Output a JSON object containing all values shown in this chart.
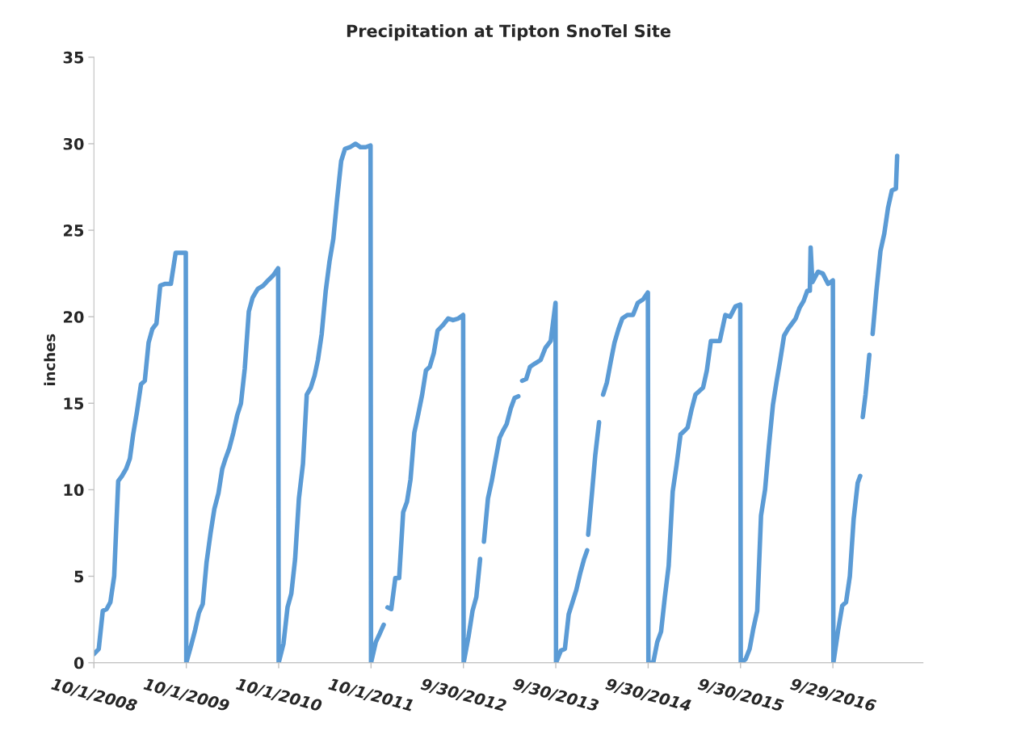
{
  "chart_data": {
    "type": "line",
    "title": "Precipitation at Tipton SnoTel Site",
    "ylabel": "inches",
    "x": [
      "2008-10-01",
      "2008-10-20",
      "2008-11-05",
      "2008-11-20",
      "2008-12-05",
      "2008-12-20",
      "2009-01-05",
      "2009-01-20",
      "2009-02-05",
      "2009-02-20",
      "2009-03-05",
      "2009-03-20",
      "2009-04-05",
      "2009-04-20",
      "2009-05-05",
      "2009-05-20",
      "2009-06-05",
      "2009-06-20",
      "2009-07-10",
      "2009-08-01",
      "2009-08-20",
      "2009-09-10",
      "2009-09-29",
      "2009-10-01",
      "2009-10-20",
      "2009-11-05",
      "2009-11-20",
      "2009-12-05",
      "2009-12-20",
      "2010-01-05",
      "2010-01-20",
      "2010-02-05",
      "2010-02-20",
      "2010-03-05",
      "2010-03-20",
      "2010-04-05",
      "2010-04-20",
      "2010-05-05",
      "2010-05-20",
      "2010-06-05",
      "2010-06-20",
      "2010-07-10",
      "2010-08-01",
      "2010-08-20",
      "2010-09-10",
      "2010-09-29",
      "2010-10-01",
      "2010-10-20",
      "2010-11-05",
      "2010-11-20",
      "2010-12-05",
      "2010-12-20",
      "2011-01-05",
      "2011-01-20",
      "2011-02-05",
      "2011-02-20",
      "2011-03-05",
      "2011-03-20",
      "2011-04-05",
      "2011-04-20",
      "2011-05-05",
      "2011-05-20",
      "2011-06-05",
      "2011-06-20",
      "2011-07-10",
      "2011-08-01",
      "2011-08-20",
      "2011-09-10",
      "2011-09-29",
      "2011-10-01",
      "2011-10-20",
      "2011-11-05",
      "2011-11-20",
      "2011-11-22",
      "2011-12-05",
      "2011-12-20",
      "2012-01-05",
      "2012-01-20",
      "2012-02-05",
      "2012-02-20",
      "2012-03-05",
      "2012-03-20",
      "2012-04-05",
      "2012-04-20",
      "2012-05-05",
      "2012-05-20",
      "2012-06-05",
      "2012-06-20",
      "2012-07-10",
      "2012-08-01",
      "2012-08-20",
      "2012-09-10",
      "2012-09-29",
      "2012-10-01",
      "2012-10-20",
      "2012-11-05",
      "2012-11-20",
      "2012-12-05",
      "2012-12-10",
      "2012-12-20",
      "2013-01-05",
      "2013-01-20",
      "2013-02-05",
      "2013-02-20",
      "2013-03-05",
      "2013-03-20",
      "2013-04-05",
      "2013-04-20",
      "2013-05-05",
      "2013-05-12",
      "2013-05-20",
      "2013-06-05",
      "2013-06-20",
      "2013-07-10",
      "2013-08-01",
      "2013-08-20",
      "2013-09-10",
      "2013-09-29",
      "2013-10-01",
      "2013-10-20",
      "2013-11-05",
      "2013-11-20",
      "2013-12-05",
      "2013-12-20",
      "2014-01-05",
      "2014-01-20",
      "2014-02-01",
      "2014-02-03",
      "2014-02-05",
      "2014-02-20",
      "2014-03-05",
      "2014-03-20",
      "2014-03-28",
      "2014-04-05",
      "2014-04-20",
      "2014-05-05",
      "2014-05-20",
      "2014-06-05",
      "2014-06-20",
      "2014-07-10",
      "2014-08-01",
      "2014-08-20",
      "2014-09-10",
      "2014-09-29",
      "2014-10-01",
      "2014-10-20",
      "2014-11-05",
      "2014-11-20",
      "2014-12-05",
      "2014-12-20",
      "2015-01-05",
      "2015-01-20",
      "2015-02-05",
      "2015-02-20",
      "2015-03-05",
      "2015-03-20",
      "2015-04-05",
      "2015-04-20",
      "2015-05-05",
      "2015-05-20",
      "2015-06-05",
      "2015-06-20",
      "2015-07-10",
      "2015-08-01",
      "2015-08-20",
      "2015-09-10",
      "2015-09-29",
      "2015-10-01",
      "2015-10-20",
      "2015-11-05",
      "2015-11-20",
      "2015-12-05",
      "2015-12-20",
      "2016-01-05",
      "2016-01-20",
      "2016-02-05",
      "2016-02-20",
      "2016-03-05",
      "2016-03-20",
      "2016-04-05",
      "2016-04-20",
      "2016-05-05",
      "2016-05-20",
      "2016-06-05",
      "2016-06-20",
      "2016-06-30",
      "2016-07-03",
      "2016-07-10",
      "2016-08-01",
      "2016-08-20",
      "2016-09-10",
      "2016-09-29",
      "2016-10-01",
      "2016-10-20",
      "2016-11-05",
      "2016-11-20",
      "2016-12-05",
      "2016-12-20",
      "2017-01-05",
      "2017-01-15",
      "2017-01-19",
      "2017-01-25",
      "2017-02-05",
      "2017-02-20",
      "2017-02-27",
      "2017-03-05",
      "2017-03-20",
      "2017-04-05",
      "2017-04-20",
      "2017-05-05",
      "2017-05-20",
      "2017-06-05",
      "2017-06-10"
    ],
    "series": [
      {
        "color": "#5b9bd5",
        "values": [
          0.5,
          0.8,
          3.0,
          3.1,
          3.5,
          5.0,
          10.5,
          10.8,
          11.2,
          11.8,
          13.2,
          14.5,
          16.1,
          16.3,
          18.5,
          19.3,
          19.6,
          21.8,
          21.9,
          21.9,
          23.7,
          23.7,
          23.7,
          0,
          1.0,
          1.9,
          2.9,
          3.4,
          5.8,
          7.5,
          8.9,
          9.8,
          11.2,
          11.8,
          12.4,
          13.3,
          14.3,
          15.0,
          17.0,
          20.3,
          21.1,
          21.6,
          21.8,
          22.1,
          22.4,
          22.8,
          0,
          1.1,
          3.2,
          4.0,
          6.0,
          9.5,
          11.5,
          15.5,
          15.9,
          16.6,
          17.5,
          19.0,
          21.5,
          23.2,
          24.5,
          26.8,
          29.0,
          29.7,
          29.8,
          30.0,
          29.8,
          29.8,
          29.9,
          0,
          1.2,
          1.7,
          2.2,
          null,
          3.2,
          3.1,
          4.9,
          4.9,
          8.7,
          9.3,
          10.6,
          13.3,
          14.4,
          15.5,
          16.9,
          17.1,
          17.9,
          19.2,
          19.5,
          19.9,
          19.8,
          19.9,
          20.1,
          0,
          1.5,
          3.0,
          3.8,
          6.0,
          null,
          7.0,
          9.5,
          10.5,
          11.8,
          13.0,
          13.4,
          13.8,
          14.7,
          15.3,
          15.4,
          null,
          16.3,
          16.4,
          17.1,
          17.3,
          17.5,
          18.2,
          18.6,
          20.8,
          0,
          0.7,
          0.8,
          2.8,
          3.5,
          4.2,
          5.2,
          6.0,
          6.5,
          null,
          7.4,
          9.8,
          12.0,
          13.9,
          null,
          15.5,
          16.2,
          17.4,
          18.5,
          19.3,
          19.9,
          20.1,
          20.1,
          20.8,
          21.0,
          21.4,
          0,
          0,
          1.2,
          1.8,
          3.8,
          5.6,
          9.9,
          11.4,
          13.2,
          13.4,
          13.6,
          14.6,
          15.5,
          15.7,
          15.9,
          16.9,
          18.6,
          18.6,
          18.6,
          20.1,
          20.0,
          20.6,
          20.7,
          0,
          0.2,
          0.8,
          2.0,
          3.0,
          8.5,
          10.0,
          12.5,
          14.9,
          16.3,
          17.5,
          18.9,
          19.3,
          19.6,
          19.9,
          20.5,
          20.9,
          21.5,
          21.5,
          24.0,
          22.0,
          22.6,
          22.5,
          21.9,
          22.1,
          0,
          1.9,
          3.3,
          3.5,
          5.0,
          8.3,
          10.4,
          10.8,
          null,
          14.2,
          15.5,
          17.8,
          null,
          19.0,
          21.5,
          23.8,
          24.8,
          26.3,
          27.3,
          27.4,
          29.3
        ]
      }
    ],
    "xlim": [
      "2008-10-01",
      "2017-09-20"
    ],
    "xticks": [
      {
        "value": "2008-10-01",
        "label": "10/1/2008"
      },
      {
        "value": "2009-10-01",
        "label": "10/1/2009"
      },
      {
        "value": "2010-10-01",
        "label": "10/1/2010"
      },
      {
        "value": "2011-10-01",
        "label": "10/1/2011"
      },
      {
        "value": "2012-09-30",
        "label": "9/30/2012"
      },
      {
        "value": "2013-09-30",
        "label": "9/30/2013"
      },
      {
        "value": "2014-09-30",
        "label": "9/30/2014"
      },
      {
        "value": "2015-09-30",
        "label": "9/30/2015"
      },
      {
        "value": "2016-09-29",
        "label": "9/29/2016"
      }
    ],
    "ylim": [
      0,
      35
    ],
    "yticks": [
      0,
      5,
      10,
      15,
      20,
      25,
      30,
      35
    ],
    "grid": false,
    "legend": false,
    "marker": "none",
    "line_style": "solid"
  }
}
